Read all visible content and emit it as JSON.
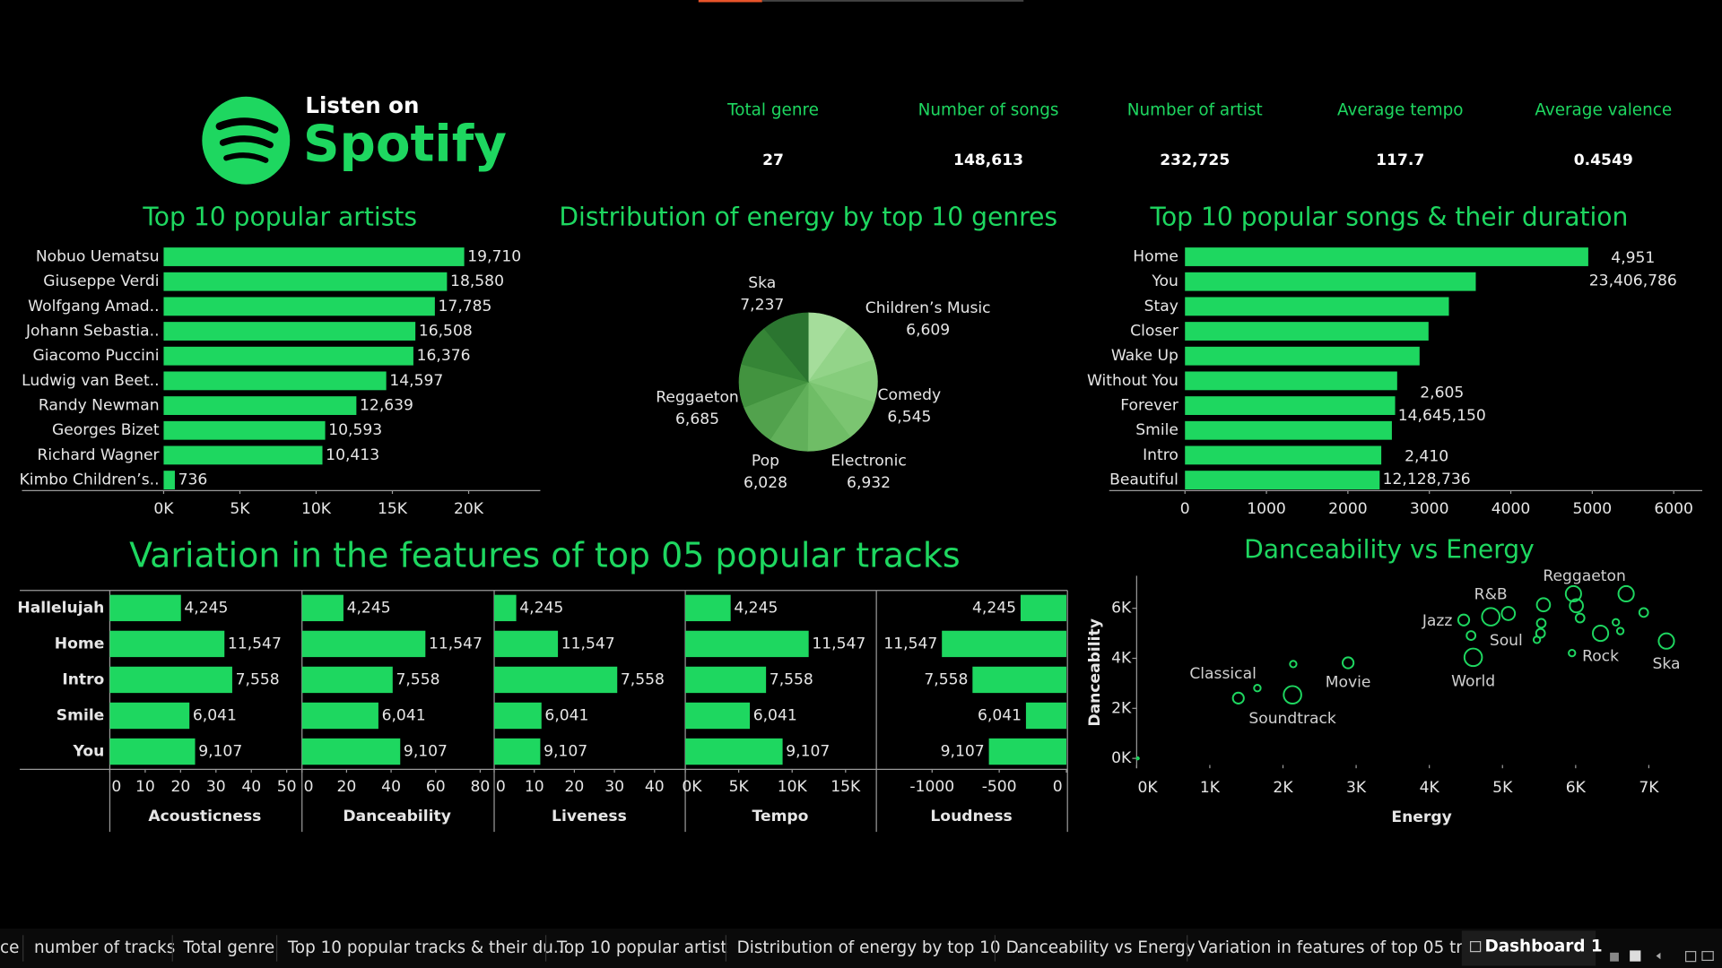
{
  "logo": {
    "tagline": "Listen on",
    "brand": "Spotify"
  },
  "kpis": [
    {
      "label": "Total genre",
      "value": "27"
    },
    {
      "label": "Number of songs",
      "value": "148,613"
    },
    {
      "label": "Number of artist",
      "value": "232,725"
    },
    {
      "label": "Average tempo",
      "value": "117.7"
    },
    {
      "label": "Average valence",
      "value": "0.4549"
    }
  ],
  "chart_data": [
    {
      "type": "bar",
      "title": "Top 10 popular artists",
      "categories": [
        "Nobuo Uematsu",
        "Giuseppe Verdi",
        "Wolfgang Amad..",
        "Johann Sebastia..",
        "Giacomo Puccini",
        "Ludwig van Beet..",
        "Randy Newman",
        "Georges Bizet",
        "Richard Wagner",
        "Kimbo Children’s.."
      ],
      "values": [
        19710,
        18580,
        17785,
        16508,
        16376,
        14597,
        12639,
        10593,
        10413,
        736
      ],
      "value_labels": [
        "19,710",
        "18,580",
        "17,785",
        "16,508",
        "16,376",
        "14,597",
        "12,639",
        "10,593",
        "10,413",
        "736"
      ],
      "color": "#1ed760",
      "xlim": [
        0,
        24700
      ],
      "xticks": [
        {
          "value": 0,
          "label": "0K"
        },
        {
          "value": 5000,
          "label": "5K"
        },
        {
          "value": 10000,
          "label": "10K"
        },
        {
          "value": 15000,
          "label": "15K"
        },
        {
          "value": 20000,
          "label": "20K"
        }
      ]
    },
    {
      "type": "pie",
      "title": "Distribution of energy by top 10 genres",
      "categories": [
        "Children’s Music",
        null,
        "Comedy",
        null,
        "Electronic",
        "Pop",
        null,
        "Reggaeton",
        null,
        "Ska"
      ],
      "values": [
        6609,
        6450,
        6545,
        6480,
        6932,
        6028,
        6350,
        6685,
        6500,
        7237
      ],
      "value_labels": [
        "6,609",
        null,
        "6,545",
        null,
        "6,932",
        "6,028",
        null,
        "6,685",
        null,
        "7,237"
      ],
      "colors": [
        "#a5dd9b",
        "#93d489",
        "#86cd7c",
        "#7bc571",
        "#6fbd66",
        "#61b05a",
        "#52a24d",
        "#42933f",
        "#358536",
        "#2b7530"
      ]
    },
    {
      "type": "bar",
      "title": "Top 10 popular songs & their duration",
      "categories": [
        "Home",
        "You",
        "Stay",
        "Closer",
        "Wake Up",
        "Without You",
        "Forever",
        "Smile",
        "Intro",
        "Beautiful"
      ],
      "values": [
        4951,
        3570,
        3240,
        2990,
        2880,
        2605,
        2580,
        2540,
        2410,
        2390
      ],
      "annotations": [
        "4,951",
        "23,406,786",
        "2,605",
        "14,645,150",
        "2,410",
        "12,128,736"
      ],
      "color": "#1ed760",
      "xlim": [
        0,
        6350
      ],
      "xticks": [
        0,
        1000,
        2000,
        3000,
        4000,
        5000,
        6000
      ]
    },
    {
      "type": "bar",
      "title": "Variation in the features of top 05 popular tracks",
      "categories": [
        "Hallelujah",
        "Home",
        "Intro",
        "Smile",
        "You"
      ],
      "data_labels": [
        "4,245",
        "11,547",
        "7,558",
        "6,041",
        "9,107"
      ],
      "color": "#1ed760",
      "series": [
        {
          "name": "Acousticness",
          "values": [
            20.1,
            32.4,
            34.6,
            22.5,
            24.1
          ],
          "xlim": [
            0,
            53.7
          ],
          "xticks": [
            0,
            10,
            20,
            30,
            40,
            50
          ]
        },
        {
          "name": "Danceability",
          "values": [
            18.6,
            55.4,
            40.7,
            34.3,
            44.1
          ],
          "xlim": [
            0,
            85.3
          ],
          "xticks": [
            0,
            20,
            40,
            60,
            80
          ]
        },
        {
          "name": "Liveness",
          "values": [
            5.5,
            15.9,
            30.7,
            11.8,
            11.5
          ],
          "xlim": [
            0,
            47.4
          ],
          "xticks": [
            0,
            10,
            20,
            30,
            40
          ]
        },
        {
          "name": "Tempo",
          "values": [
            4245,
            11547,
            7558,
            6041,
            9107
          ],
          "xlim": [
            0,
            17780
          ],
          "xticks": [
            {
              "value": 0,
              "label": "0K"
            },
            {
              "value": 5000,
              "label": "5K"
            },
            {
              "value": 10000,
              "label": "10K"
            },
            {
              "value": 15000,
              "label": "15K"
            }
          ]
        },
        {
          "name": "Loudness",
          "values": [
            -341,
            -927,
            -699,
            -301,
            -577
          ],
          "xlim": [
            -1415,
            0
          ],
          "xticks": [
            -1000,
            -500,
            0
          ]
        }
      ]
    },
    {
      "type": "scatter",
      "title": "Danceability vs Energy",
      "x_label": "Energy",
      "y_label": "Danceability",
      "color": "#1ed760",
      "x": [
        15,
        1390,
        1650,
        2130,
        2140,
        2890,
        4470,
        4570,
        4840,
        5080,
        4600,
        5560,
        5530,
        5520,
        5470,
        5970,
        6010,
        6060,
        5950,
        6340,
        6550,
        6610,
        6690,
        6930,
        7240
      ],
      "values": [
        0,
        2410,
        2810,
        2540,
        3770,
        3820,
        5530,
        4910,
        5660,
        5790,
        4040,
        6140,
        5400,
        5000,
        4740,
        6580,
        6100,
        5610,
        4210,
        5000,
        5440,
        5090,
        6580,
        5830,
        4690
      ],
      "sizes": [
        1,
        5,
        3,
        8,
        3,
        5,
        5,
        4,
        8,
        6,
        8,
        6,
        4,
        4,
        3,
        7,
        6,
        4,
        3,
        7,
        3,
        3,
        7,
        4,
        7
      ],
      "labels": [
        null,
        "Classical",
        null,
        "Soundtrack",
        null,
        "Movie",
        "Jazz",
        null,
        "R&B",
        "Soul",
        "World",
        null,
        null,
        null,
        null,
        "Reggaeton",
        null,
        null,
        null,
        "Rock",
        null,
        null,
        null,
        null,
        "Ska"
      ],
      "xlim": [
        0,
        7700
      ],
      "ylim": [
        0,
        7300
      ],
      "xticks": [
        {
          "value": 0,
          "label": "0K"
        },
        {
          "value": 1000,
          "label": "1K"
        },
        {
          "value": 2000,
          "label": "2K"
        },
        {
          "value": 3000,
          "label": "3K"
        },
        {
          "value": 4000,
          "label": "4K"
        },
        {
          "value": 5000,
          "label": "5K"
        },
        {
          "value": 6000,
          "label": "6K"
        },
        {
          "value": 7000,
          "label": "7K"
        }
      ],
      "yticks": [
        {
          "value": 0,
          "label": "0K"
        },
        {
          "value": 2000,
          "label": "2K"
        },
        {
          "value": 4000,
          "label": "4K"
        },
        {
          "value": 6000,
          "label": "6K"
        }
      ]
    }
  ],
  "tabs": [
    "ce",
    "number of tracks",
    "Total genre",
    "Top 10 popular tracks & their du...",
    "Top 10 popular artist",
    "Distribution of energy by top 10 ...",
    "Danceability vs Energy",
    "Variation in features of top 05 tr...",
    "Dashboard 1"
  ]
}
